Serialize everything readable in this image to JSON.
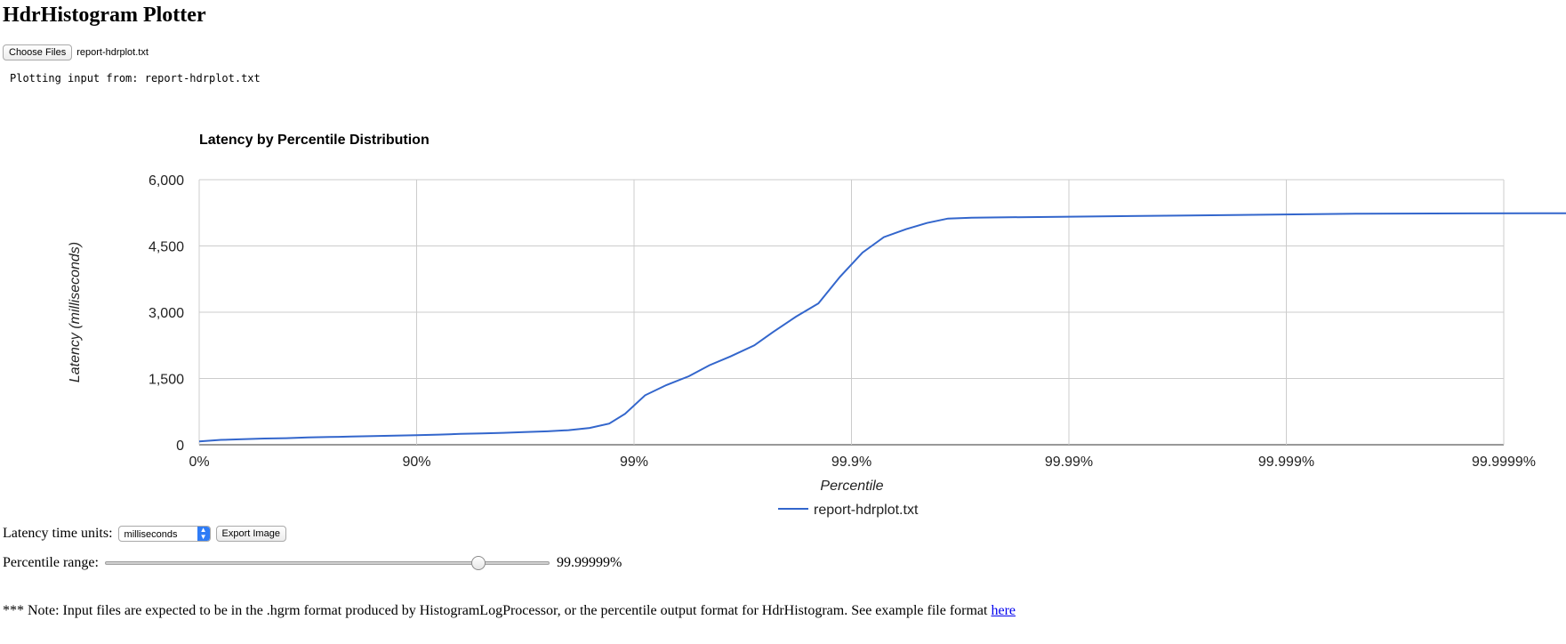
{
  "page": {
    "title": "HdrHistogram Plotter"
  },
  "file_input": {
    "button_label": "Choose Files",
    "file_name": "report-hdrplot.txt"
  },
  "status": {
    "message": "Plotting input from: report-hdrplot.txt"
  },
  "controls": {
    "units_label": "Latency time units:",
    "units_value": "milliseconds",
    "export_label": "Export Image",
    "range_label": "Percentile range:",
    "range_value_text": "99.99999%",
    "range_slider_fraction": 0.84
  },
  "note": {
    "text": "*** Note: Input files are expected to be in the .hgrm format produced by HistogramLogProcessor, or the percentile output format for HdrHistogram. See example file format ",
    "link_text": "here"
  },
  "colors": {
    "series": "#3366cc",
    "grid": "#cccccc",
    "baseline": "#333333",
    "axis_text": "#222222"
  },
  "chart_data": {
    "type": "line",
    "title": "Latency by Percentile Distribution",
    "xlabel": "Percentile",
    "ylabel": "Latency (milliseconds)",
    "x_scale": "log-inverse",
    "x_ticks": [
      "0%",
      "90%",
      "99%",
      "99.9%",
      "99.99%",
      "99.999%",
      "99.9999%"
    ],
    "x_tick_percentiles": [
      0,
      90,
      99,
      99.9,
      99.99,
      99.999,
      99.9999
    ],
    "y_ticks": [
      "0",
      "1,500",
      "3,000",
      "4,500",
      "6,000"
    ],
    "ylim": [
      0,
      6000
    ],
    "grid": true,
    "legend_position": "bottom",
    "series": [
      {
        "name": "report-hdrplot.txt",
        "points": [
          [
            0,
            75
          ],
          [
            20.6,
            110
          ],
          [
            36.9,
            125
          ],
          [
            49.9,
            140
          ],
          [
            60.2,
            150
          ],
          [
            68.4,
            165
          ],
          [
            74.9,
            175
          ],
          [
            80.0,
            185
          ],
          [
            84.2,
            195
          ],
          [
            87.4,
            205
          ],
          [
            90.0,
            215
          ],
          [
            92.1,
            230
          ],
          [
            93.7,
            245
          ],
          [
            95.0,
            255
          ],
          [
            96.0,
            270
          ],
          [
            96.8,
            285
          ],
          [
            97.5,
            305
          ],
          [
            98.0,
            330
          ],
          [
            98.4,
            380
          ],
          [
            98.7,
            480
          ],
          [
            98.9,
            700
          ],
          [
            99.11,
            1120
          ],
          [
            99.29,
            1350
          ],
          [
            99.44,
            1550
          ],
          [
            99.55,
            1800
          ],
          [
            99.64,
            2000
          ],
          [
            99.72,
            2250
          ],
          [
            99.77,
            2550
          ],
          [
            99.82,
            2900
          ],
          [
            99.858,
            3200
          ],
          [
            99.887,
            3800
          ],
          [
            99.911,
            4350
          ],
          [
            99.929,
            4700
          ],
          [
            99.944,
            4880
          ],
          [
            99.955,
            5020
          ],
          [
            99.964,
            5120
          ],
          [
            99.972,
            5140
          ],
          [
            99.989,
            5160
          ],
          [
            99.9972,
            5190
          ],
          [
            99.99955,
            5230
          ],
          [
            99.99993,
            5240
          ],
          [
            99.99999,
            5240
          ]
        ]
      }
    ]
  }
}
